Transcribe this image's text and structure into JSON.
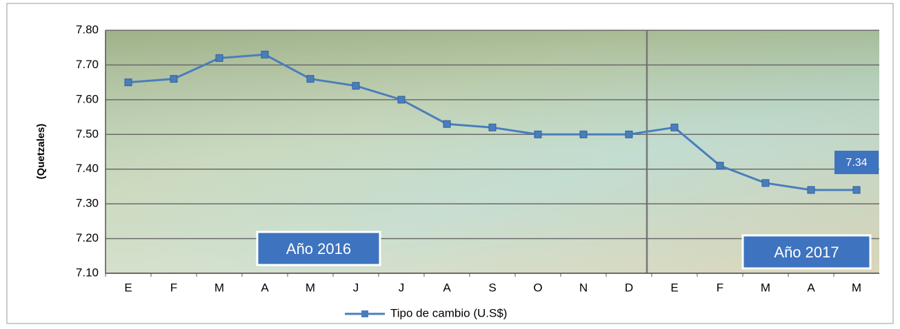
{
  "chart_data": {
    "type": "line",
    "y_label": "(Quetzales)",
    "categories": [
      "E",
      "F",
      "M",
      "A",
      "M",
      "J",
      "J",
      "A",
      "S",
      "O",
      "N",
      "D",
      "E",
      "F",
      "M",
      "A",
      "M"
    ],
    "series": [
      {
        "name": "Tipo de cambio (U.S$)",
        "color": "#4a7ebb",
        "values": [
          7.65,
          7.66,
          7.72,
          7.73,
          7.66,
          7.64,
          7.6,
          7.53,
          7.52,
          7.5,
          7.5,
          7.5,
          7.52,
          7.41,
          7.36,
          7.34,
          7.34
        ],
        "value_labels": [
          null,
          null,
          null,
          null,
          null,
          null,
          null,
          null,
          null,
          null,
          null,
          null,
          null,
          null,
          null,
          null,
          "7.34"
        ]
      }
    ],
    "ylim": [
      7.1,
      7.8
    ],
    "yticks": [
      {
        "value": 7.1,
        "label": "7.10"
      },
      {
        "value": 7.2,
        "label": "7.20"
      },
      {
        "value": 7.3,
        "label": "7.30"
      },
      {
        "value": 7.4,
        "label": "7.40"
      },
      {
        "value": 7.5,
        "label": "7.50"
      },
      {
        "value": 7.6,
        "label": "7.60"
      },
      {
        "value": 7.7,
        "label": "7.70"
      },
      {
        "value": 7.8,
        "label": "7.80"
      }
    ],
    "grid": true,
    "annotations": [
      "Año 2016",
      "Año 2017"
    ],
    "legend": "bottom"
  }
}
